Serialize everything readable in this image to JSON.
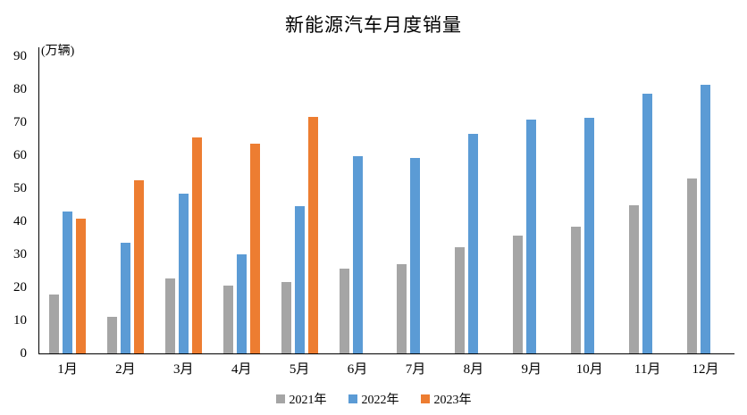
{
  "chart_data": {
    "type": "bar",
    "title": "新能源汽车月度销量",
    "ylabel": "(万辆)",
    "xlabel": "",
    "categories": [
      "1月",
      "2月",
      "3月",
      "4月",
      "5月",
      "6月",
      "7月",
      "8月",
      "9月",
      "10月",
      "11月",
      "12月"
    ],
    "series": [
      {
        "name": "2021年",
        "color": "#A5A5A5",
        "values": [
          17.9,
          11.0,
          22.6,
          20.6,
          21.7,
          25.6,
          27.1,
          32.1,
          35.7,
          38.3,
          45.0,
          53.1
        ]
      },
      {
        "name": "2022年",
        "color": "#5B9BD5",
        "values": [
          43.1,
          33.4,
          48.4,
          29.9,
          44.7,
          59.6,
          59.3,
          66.6,
          70.8,
          71.4,
          78.6,
          81.4
        ]
      },
      {
        "name": "2023年",
        "color": "#ED7D31",
        "values": [
          40.8,
          52.5,
          65.3,
          63.6,
          71.7,
          null,
          null,
          null,
          null,
          null,
          null,
          null
        ]
      }
    ],
    "ylim": [
      0,
      90
    ],
    "ytick_interval": 10,
    "grid": false,
    "legend_position": "bottom",
    "axis_color": "#000000"
  }
}
